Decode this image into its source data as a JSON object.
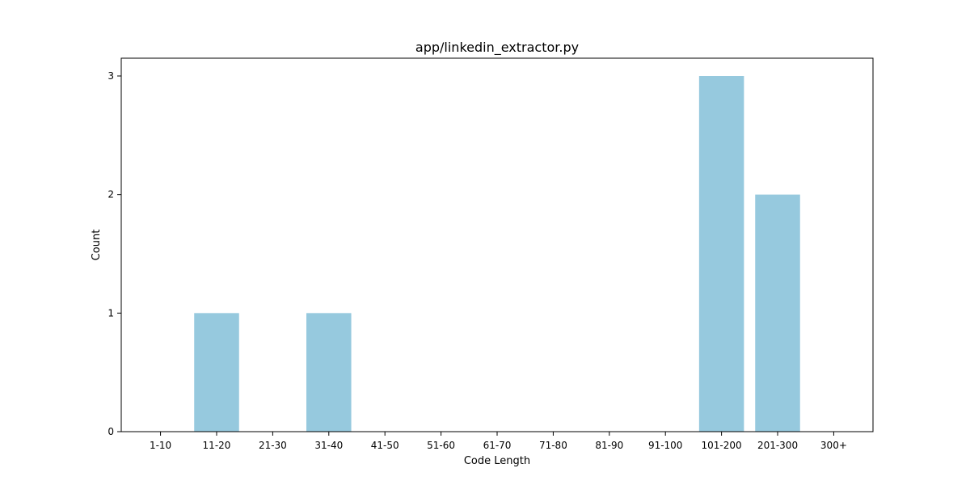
{
  "chart_data": {
    "type": "bar",
    "title": "app/linkedin_extractor.py",
    "xlabel": "Code Length",
    "ylabel": "Count",
    "categories": [
      "1-10",
      "11-20",
      "21-30",
      "31-40",
      "41-50",
      "51-60",
      "61-70",
      "71-80",
      "81-90",
      "91-100",
      "101-200",
      "201-300",
      "300+"
    ],
    "values": [
      0,
      1,
      0,
      1,
      0,
      0,
      0,
      0,
      0,
      0,
      3,
      2,
      0
    ],
    "yticks": [
      0,
      1,
      2,
      3
    ],
    "ylim": [
      0,
      3.15
    ],
    "bar_color": "#96c9de",
    "grid": false,
    "legend": "none"
  }
}
